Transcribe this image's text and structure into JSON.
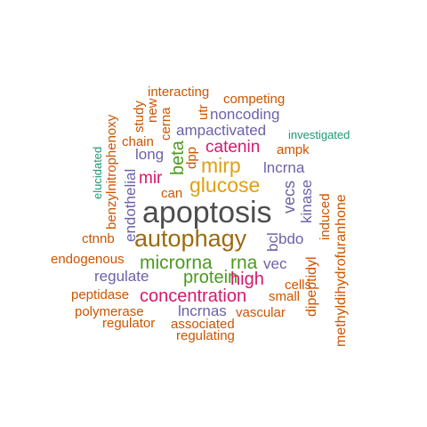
{
  "colors": {
    "gray": "#4d4d4d",
    "olive": "#9a6b10",
    "green": "#4c9a1e",
    "magenta": "#d6186e",
    "purple": "#6b62a8",
    "orange": "#cc5500",
    "gold": "#e0a010",
    "teal": "#1a9a72"
  },
  "words": [
    {
      "id": "apoptosis",
      "text": "apoptosis",
      "color": "gray",
      "weight": 10
    },
    {
      "id": "autophagy",
      "text": "autophagy",
      "color": "olive",
      "weight": 8
    },
    {
      "id": "microrna",
      "text": "microrna",
      "color": "green",
      "weight": 6
    },
    {
      "id": "glucose",
      "text": "glucose",
      "color": "gold",
      "weight": 6
    },
    {
      "id": "mirp",
      "text": "mirp",
      "color": "gold",
      "weight": 6
    },
    {
      "id": "rna",
      "text": "rna",
      "color": "green",
      "weight": 6
    },
    {
      "id": "protein",
      "text": "protein",
      "color": "green",
      "weight": 5
    },
    {
      "id": "concentration",
      "text": "concentration",
      "color": "magenta",
      "weight": 5
    },
    {
      "id": "high",
      "text": "high",
      "color": "magenta",
      "weight": 5
    },
    {
      "id": "beta",
      "text": "beta",
      "color": "green",
      "weight": 5
    },
    {
      "id": "catenin",
      "text": "catenin",
      "color": "magenta",
      "weight": 5
    },
    {
      "id": "mir",
      "text": "mir",
      "color": "magenta",
      "weight": 5
    },
    {
      "id": "lncrnas",
      "text": "lncrnas",
      "color": "purple",
      "weight": 4
    },
    {
      "id": "noncoding",
      "text": "noncoding",
      "color": "purple",
      "weight": 4
    },
    {
      "id": "ampactivated",
      "text": "ampactivated",
      "color": "purple",
      "weight": 4
    },
    {
      "id": "lncrna",
      "text": "lncrna",
      "color": "purple",
      "weight": 4
    },
    {
      "id": "long",
      "text": "long",
      "color": "purple",
      "weight": 4
    },
    {
      "id": "regulate",
      "text": "regulate",
      "color": "purple",
      "weight": 4
    },
    {
      "id": "vecs",
      "text": "vecs",
      "color": "purple",
      "weight": 4
    },
    {
      "id": "vec",
      "text": "vec",
      "color": "purple",
      "weight": 4
    },
    {
      "id": "bdo",
      "text": "bdo",
      "color": "purple",
      "weight": 4
    },
    {
      "id": "bcl",
      "text": "bcl",
      "color": "purple",
      "weight": 4
    },
    {
      "id": "kinase",
      "text": "kinase",
      "color": "purple",
      "weight": 4
    },
    {
      "id": "endothelial",
      "text": "endothelial",
      "color": "purple",
      "weight": 4
    },
    {
      "id": "vascular",
      "text": "vascular",
      "color": "orange",
      "weight": 3
    },
    {
      "id": "interacting",
      "text": "interacting",
      "color": "orange",
      "weight": 3
    },
    {
      "id": "competing",
      "text": "competing",
      "color": "orange",
      "weight": 3
    },
    {
      "id": "study",
      "text": "study",
      "color": "orange",
      "weight": 3
    },
    {
      "id": "new",
      "text": "new",
      "color": "orange",
      "weight": 3
    },
    {
      "id": "cerna",
      "text": "cerna",
      "color": "orange",
      "weight": 3
    },
    {
      "id": "utr",
      "text": "utr",
      "color": "orange",
      "weight": 3
    },
    {
      "id": "chain",
      "text": "chain",
      "color": "orange",
      "weight": 3
    },
    {
      "id": "dpp",
      "text": "dpp",
      "color": "orange",
      "weight": 3
    },
    {
      "id": "ampk",
      "text": "ampk",
      "color": "orange",
      "weight": 3
    },
    {
      "id": "can",
      "text": "can",
      "color": "orange",
      "weight": 3
    },
    {
      "id": "ctnnb",
      "text": "ctnnb",
      "color": "orange",
      "weight": 3
    },
    {
      "id": "endogenous",
      "text": "endogenous",
      "color": "orange",
      "weight": 3
    },
    {
      "id": "peptidase",
      "text": "peptidase",
      "color": "orange",
      "weight": 3
    },
    {
      "id": "polymerase",
      "text": "polymerase",
      "color": "orange",
      "weight": 3
    },
    {
      "id": "regulator",
      "text": "regulator",
      "color": "orange",
      "weight": 3
    },
    {
      "id": "associated",
      "text": "associated",
      "color": "orange",
      "weight": 3
    },
    {
      "id": "regulating",
      "text": "regulating",
      "color": "orange",
      "weight": 3
    },
    {
      "id": "cells",
      "text": "cells",
      "color": "orange",
      "weight": 3
    },
    {
      "id": "small",
      "text": "small",
      "color": "orange",
      "weight": 3
    },
    {
      "id": "dipeptidyl",
      "text": "dipeptidyl",
      "color": "orange",
      "weight": 3
    },
    {
      "id": "induced",
      "text": "induced",
      "color": "orange",
      "weight": 3
    },
    {
      "id": "methyldihydrofuranhone",
      "text": "methyldihydrofuranhone",
      "color": "orange",
      "weight": 3
    },
    {
      "id": "benzylnitrophenoxy",
      "text": "benzylnitrophenoxy",
      "color": "orange",
      "weight": 3
    },
    {
      "id": "elucidated",
      "text": "elucidated",
      "color": "teal",
      "weight": 2
    },
    {
      "id": "investigated",
      "text": "investigated",
      "color": "teal",
      "weight": 2
    }
  ]
}
